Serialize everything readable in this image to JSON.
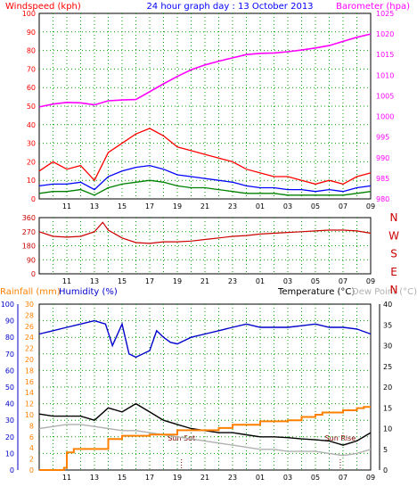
{
  "title": "24 hour graph day : 13 October 2013",
  "colors": {
    "wind_gust": "#ff0000",
    "wind_avg": "#0000ff",
    "wind_min": "#008000",
    "barometer": "#ff00ff",
    "direction": "#cc0000",
    "rainfall": "#ff8000",
    "humidity": "#0000cc",
    "temperature": "#000000",
    "dew_point": "#b0b0b0",
    "grid": "#00a000",
    "sun_label": "#800000"
  },
  "hour_labels": [
    "11",
    "13",
    "15",
    "17",
    "19",
    "21",
    "23",
    "01",
    "03",
    "05",
    "07",
    "09"
  ],
  "chart_data": [
    {
      "type": "line",
      "name": "wind-barometer",
      "left_axis_label": "Windspeed (kph)",
      "right_axis_label": "Barometer (hpa)",
      "ylim_left": [
        0,
        100
      ],
      "yticks_left": [
        "0",
        "10",
        "20",
        "30",
        "40",
        "50",
        "60",
        "70",
        "80",
        "90",
        "100"
      ],
      "ylim_right": [
        980,
        1025
      ],
      "yticks_right": [
        "980",
        "985",
        "990",
        "995",
        "1000",
        "1005",
        "1010",
        "1015",
        "1020",
        "1025"
      ],
      "xlim": [
        9,
        33
      ],
      "series": [
        {
          "name": "Windspeed",
          "x": [
            9,
            10,
            11,
            12,
            13,
            14,
            15,
            16,
            17,
            18,
            19,
            20,
            21,
            22,
            23,
            24,
            25,
            26,
            27,
            28,
            29,
            30,
            31,
            32,
            33
          ],
          "y": [
            15,
            20,
            16,
            18,
            10,
            25,
            30,
            35,
            38,
            34,
            28,
            26,
            24,
            22,
            20,
            16,
            14,
            12,
            12,
            10,
            8,
            10,
            8,
            12,
            14
          ]
        },
        {
          "name": "Windspeed avg",
          "x": [
            9,
            10,
            11,
            12,
            13,
            14,
            15,
            16,
            17,
            18,
            19,
            20,
            21,
            22,
            23,
            24,
            25,
            26,
            27,
            28,
            29,
            30,
            31,
            32,
            33
          ],
          "y": [
            7,
            8,
            8,
            9,
            5,
            12,
            15,
            17,
            18,
            16,
            13,
            12,
            11,
            10,
            9,
            7,
            6,
            6,
            5,
            5,
            4,
            5,
            4,
            6,
            7
          ]
        },
        {
          "name": "Windspeed min",
          "x": [
            9,
            10,
            11,
            12,
            13,
            14,
            15,
            16,
            17,
            18,
            19,
            20,
            21,
            22,
            23,
            24,
            25,
            26,
            27,
            28,
            29,
            30,
            31,
            32,
            33
          ],
          "y": [
            3,
            4,
            4,
            5,
            2,
            6,
            8,
            9,
            10,
            9,
            7,
            6,
            6,
            5,
            4,
            3,
            3,
            3,
            2,
            2,
            2,
            2,
            2,
            3,
            4
          ]
        },
        {
          "name": "Barometer",
          "x": [
            9,
            10,
            11,
            12,
            13,
            14,
            15,
            16,
            17,
            18,
            19,
            20,
            21,
            22,
            23,
            24,
            25,
            26,
            27,
            28,
            29,
            30,
            31,
            32,
            33
          ],
          "y": [
            1002.3,
            1003,
            1003.4,
            1003.3,
            1002.8,
            1003.8,
            1004,
            1004.1,
            1006,
            1007.9,
            1009.7,
            1011.3,
            1012.5,
            1013.4,
            1014.2,
            1015,
            1015.3,
            1015.4,
            1015.7,
            1016.1,
            1016.6,
            1017.2,
            1018.2,
            1019.2,
            1020
          ]
        }
      ]
    },
    {
      "type": "line",
      "name": "wind-direction",
      "ylim": [
        0,
        360
      ],
      "yticks": [
        "0",
        "90",
        "180",
        "270",
        "360"
      ],
      "compass_labels": [
        "N",
        "W",
        "S",
        "E",
        "N"
      ],
      "xlim": [
        9,
        33
      ],
      "series": [
        {
          "name": "Wind Direction",
          "x": [
            9,
            10,
            11,
            12,
            13,
            13.6,
            14,
            15,
            16,
            17,
            18,
            19,
            20,
            21,
            22,
            23,
            24,
            25,
            26,
            27,
            28,
            29,
            30,
            31,
            32,
            33
          ],
          "y": [
            270,
            240,
            235,
            240,
            270,
            330,
            280,
            230,
            200,
            195,
            205,
            205,
            210,
            220,
            230,
            240,
            245,
            255,
            260,
            265,
            270,
            275,
            280,
            280,
            275,
            260
          ]
        }
      ]
    },
    {
      "type": "line",
      "name": "rain-humidity-temperature",
      "rain_axis_label": "Rainfall (mm)",
      "humidity_axis_label": "Humidity (%)",
      "temperature_axis_label": "Temperature (°C)",
      "dew_axis_label": "Dew Point (°C)",
      "ylim_humidity": [
        0,
        100
      ],
      "yticks_humidity": [
        "0",
        "10",
        "20",
        "30",
        "40",
        "50",
        "60",
        "70",
        "80",
        "90",
        "100"
      ],
      "ylim_rain": [
        0,
        30
      ],
      "yticks_rain": [
        "0",
        "2",
        "4",
        "6",
        "8",
        "10",
        "12",
        "14",
        "16",
        "18",
        "20",
        "22",
        "24",
        "26",
        "28",
        "30"
      ],
      "ylim_temperature": [
        0,
        40
      ],
      "yticks_temperature": [
        "0",
        "5",
        "10",
        "15",
        "20",
        "25",
        "30",
        "35",
        "40"
      ],
      "xlim": [
        9,
        33
      ],
      "annotations": [
        {
          "text": "Sun Set",
          "x": 19.3
        },
        {
          "text": "Sun Rise",
          "x": 30.8
        }
      ],
      "series": [
        {
          "name": "Humidity",
          "x": [
            9,
            10,
            11,
            12,
            13,
            13.8,
            14.3,
            15,
            15.5,
            16,
            17,
            17.5,
            18,
            18.5,
            19,
            20,
            21,
            22,
            23,
            24,
            25,
            26,
            27,
            28,
            29,
            30,
            31,
            32,
            33
          ],
          "y": [
            82,
            84,
            86,
            88,
            90,
            88,
            75,
            88,
            70,
            68,
            72,
            84,
            80,
            77,
            76,
            80,
            82,
            84,
            86,
            88,
            86,
            86,
            86,
            87,
            88,
            86,
            86,
            85,
            82
          ]
        },
        {
          "name": "Temperature",
          "x": [
            9,
            10,
            11,
            12,
            13,
            14,
            15,
            16,
            17,
            18,
            19,
            20,
            21,
            22,
            23,
            24,
            25,
            26,
            27,
            28,
            29,
            30,
            31,
            32,
            33
          ],
          "y": [
            13.5,
            13,
            13,
            13,
            12,
            15,
            14,
            16,
            14,
            12,
            11,
            10,
            9.5,
            9,
            9,
            8.5,
            8,
            8,
            7.8,
            7.5,
            7.3,
            7,
            6,
            7,
            9
          ]
        },
        {
          "name": "Dew Point",
          "x": [
            9,
            10,
            11,
            12,
            13,
            14,
            15,
            16,
            17,
            18,
            19,
            20,
            21,
            22,
            23,
            24,
            25,
            26,
            27,
            28,
            29,
            30,
            31,
            32,
            33
          ],
          "y": [
            10,
            10.5,
            11,
            11,
            10.5,
            10,
            9.5,
            9.5,
            9,
            8.5,
            8,
            7.5,
            7,
            6.5,
            6,
            5.5,
            5,
            5,
            4.5,
            4.5,
            4.5,
            4,
            3.5,
            4,
            5
          ]
        },
        {
          "name": "Rainfall",
          "x": [
            9,
            10,
            10.8,
            11,
            11.5,
            14,
            15,
            17,
            19,
            21,
            22,
            23,
            25,
            27,
            28,
            29,
            29.5,
            31,
            32,
            32.5,
            33
          ],
          "y": [
            0,
            0,
            0.4,
            3.2,
            3.8,
            5.6,
            6.2,
            6.4,
            7.2,
            7.2,
            7.6,
            8.2,
            8.8,
            9,
            9.6,
            10,
            10.4,
            10.8,
            11.2,
            11.4,
            11.4
          ]
        }
      ]
    }
  ]
}
